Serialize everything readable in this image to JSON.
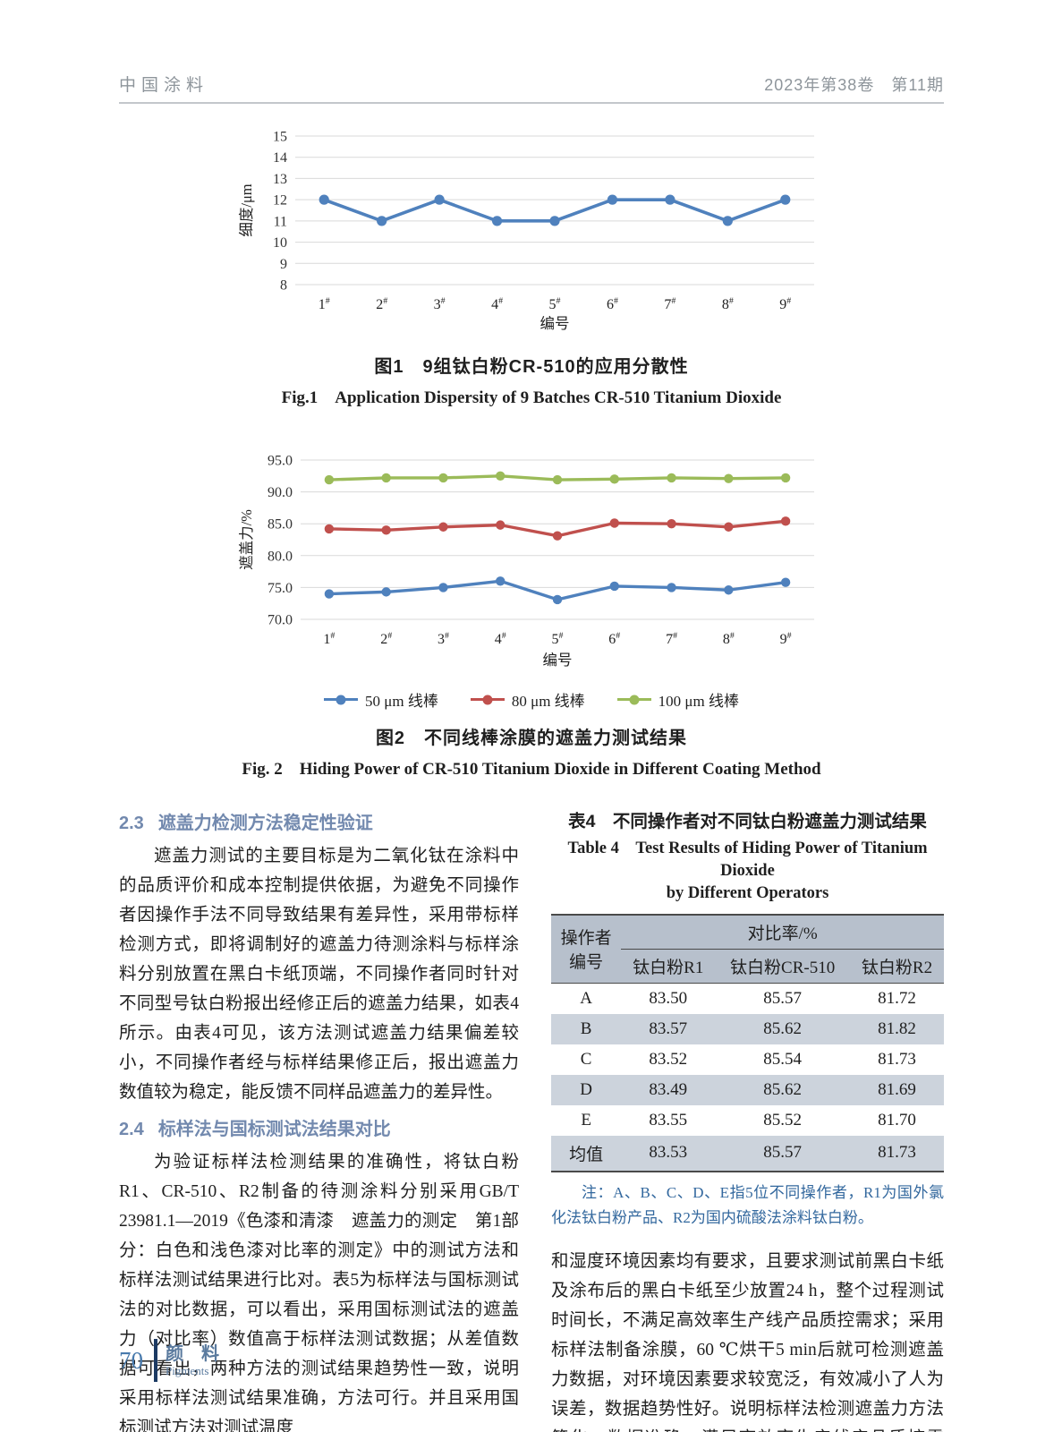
{
  "header": {
    "journal": "中国涂料",
    "issue": "2023年第38卷　第11期"
  },
  "chart_data": [
    {
      "id": "fig1",
      "type": "line",
      "title": "",
      "xlabel": "编号",
      "ylabel": "细度/μm",
      "categories": [
        "1",
        "2",
        "3",
        "4",
        "5",
        "6",
        "7",
        "8",
        "9"
      ],
      "category_suffix": "#",
      "ylim": [
        8,
        15
      ],
      "yticks": [
        8,
        9,
        10,
        11,
        12,
        13,
        14,
        15
      ],
      "ytick_labels": [
        "8",
        "9",
        "10",
        "11",
        "12",
        "13",
        "14",
        "15"
      ],
      "grid": true,
      "legend_position": "none",
      "series": [
        {
          "name": "细度",
          "color": "#4F81BD",
          "values": [
            12,
            11,
            12,
            11,
            11,
            12,
            12,
            11,
            12
          ]
        }
      ]
    },
    {
      "id": "fig2",
      "type": "line",
      "title": "",
      "xlabel": "编号",
      "ylabel": "遮盖力/%",
      "categories": [
        "1",
        "2",
        "3",
        "4",
        "5",
        "6",
        "7",
        "8",
        "9"
      ],
      "category_suffix": "#",
      "ylim": [
        70,
        95
      ],
      "yticks": [
        70,
        75,
        80,
        85,
        90,
        95
      ],
      "ytick_labels": [
        "70.0",
        "75.0",
        "80.0",
        "85.0",
        "90.0",
        "95.0"
      ],
      "grid": true,
      "legend_position": "bottom",
      "series": [
        {
          "name": "50 μm 线棒",
          "color": "#4F81BD",
          "values": [
            74.0,
            74.3,
            75.0,
            76.0,
            73.1,
            75.2,
            75.0,
            74.6,
            75.8
          ]
        },
        {
          "name": "80 μm 线棒",
          "color": "#C0504D",
          "values": [
            84.2,
            84.0,
            84.5,
            84.8,
            83.1,
            85.1,
            85.0,
            84.5,
            85.4
          ]
        },
        {
          "name": "100 μm 线棒",
          "color": "#9BBB59",
          "values": [
            91.9,
            92.2,
            92.2,
            92.5,
            91.9,
            92.0,
            92.2,
            92.1,
            92.2
          ]
        }
      ]
    }
  ],
  "figure1": {
    "caption_zh": "图1　9组钛白粉CR-510的应用分散性",
    "caption_en": "Fig.1　Application Dispersity of 9 Batches CR-510 Titanium Dioxide"
  },
  "figure2": {
    "caption_zh": "图2　不同线棒涂膜的遮盖力测试结果",
    "caption_en": "Fig. 2　Hiding Power of CR-510 Titanium Dioxide in Different Coating Method"
  },
  "sections": {
    "s23_num": "2.3",
    "s23_title": "遮盖力检测方法稳定性验证",
    "s23_body": "遮盖力测试的主要目标是为二氧化钛在涂料中的品质评价和成本控制提供依据，为避免不同操作者因操作手法不同导致结果有差异性，采用带标样检测方式，即将调制好的遮盖力待测涂料与标样涂料分别放置在黑白卡纸顶端，不同操作者同时针对不同型号钛白粉报出经修正后的遮盖力结果，如表4所示。由表4可见，该方法测试遮盖力结果偏差较小，不同操作者经与标样结果修正后，报出遮盖力数值较为稳定，能反馈不同样品遮盖力的差异性。",
    "s24_num": "2.4",
    "s24_title": "标样法与国标测试法结果对比",
    "s24_body": "为验证标样法检测结果的准确性，将钛白粉R1、CR-510、R2制备的待测涂料分别采用GB/T 23981.1—2019《色漆和清漆　遮盖力的测定　第1部分：白色和浅色漆对比率的测定》中的测试方法和标样法测试结果进行比对。表5为标样法与国标测试法的对比数据，可以看出，采用国标测试法的遮盖力（对比率）数值高于标样法测试数据；从差值数据可看出，两种方法的测试结果趋势性一致，说明采用标样法测试结果准确，方法可行。并且采用国标测试方法对测试温度",
    "right_body": "和湿度环境因素均有要求，且要求测试前黑白卡纸及涂布后的黑白卡纸至少放置24 h，整个过程测试时间长，不满足高效率生产线产品质控需求；采用标样法制备涂膜，60 ℃烘干5 min后就可检测遮盖力数据，对环境因素要求较宽泛，有效减小了人为误差，数据趋势性好。说明标样法检测遮盖力方法简化，数据准确，满足高效率生产线产品质控需求。"
  },
  "table4": {
    "title_zh": "表4　不同操作者对不同钛白粉遮盖力测试结果",
    "title_en_line1": "Table 4　Test Results of Hiding Power of Titanium Dioxide",
    "title_en_line2": "by Different Operators",
    "header_left_line1": "操作者",
    "header_left_line2": "编号",
    "col_group": "对比率/%",
    "columns": [
      "钛白粉R1",
      "钛白粉CR-510",
      "钛白粉R2"
    ],
    "rows": [
      {
        "label": "A",
        "values": [
          "83.50",
          "85.57",
          "81.72"
        ]
      },
      {
        "label": "B",
        "values": [
          "83.57",
          "85.62",
          "81.82"
        ]
      },
      {
        "label": "C",
        "values": [
          "83.52",
          "85.54",
          "81.73"
        ]
      },
      {
        "label": "D",
        "values": [
          "83.49",
          "85.62",
          "81.69"
        ]
      },
      {
        "label": "E",
        "values": [
          "83.55",
          "85.52",
          "81.70"
        ]
      },
      {
        "label": "均值",
        "values": [
          "83.53",
          "85.57",
          "81.73"
        ]
      }
    ],
    "note": "注：A、B、C、D、E指5位不同操作者，R1为国外氯化法钛白粉产品、R2为国内硫酸法涂料钛白粉。"
  },
  "footer": {
    "page_number": "70",
    "label_zh": "颜　料",
    "label_en": "Pigments"
  },
  "colors": {
    "heading_blue": "#7289ae",
    "note_blue": "#33689e",
    "table_header_bg": "#b7c0cc",
    "table_row_shade": "#ccd3dc",
    "grid_grey": "#d9d9d9",
    "footer_bar": "#1c3a63",
    "footer_blue": "#4779ac",
    "header_grey": "#8e959b"
  }
}
